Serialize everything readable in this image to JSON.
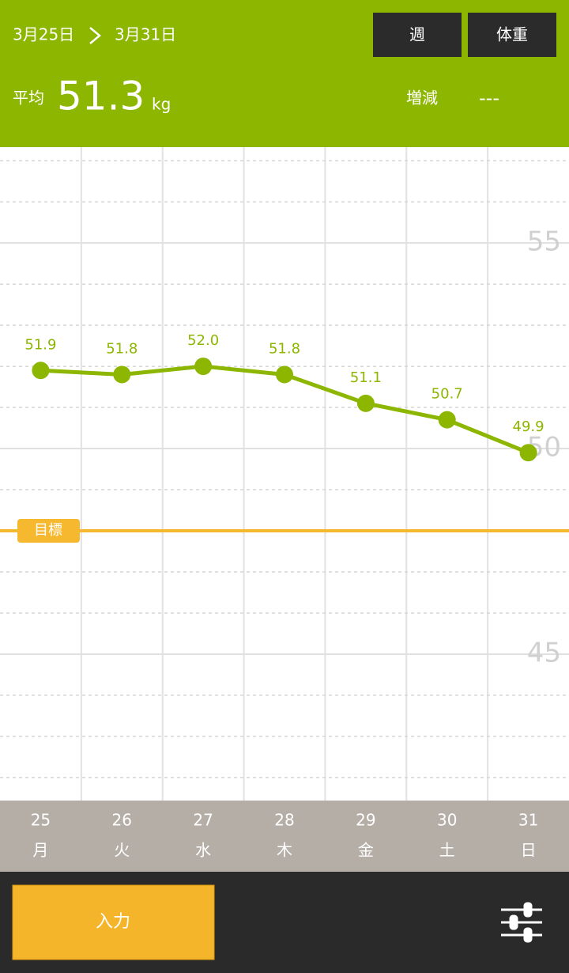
{
  "header": {
    "date_from": "3月25日",
    "date_to": "3月31日",
    "period_button": "週",
    "metric_button": "体重",
    "average_label": "平均",
    "average_value": "51.3",
    "unit": "kg",
    "change_label": "増減",
    "change_value": "---"
  },
  "chart_data": {
    "type": "line",
    "categories": [
      "25",
      "26",
      "27",
      "28",
      "29",
      "30",
      "31"
    ],
    "weekdays": [
      "月",
      "火",
      "水",
      "木",
      "金",
      "土",
      "日"
    ],
    "values": [
      51.9,
      51.8,
      52.0,
      51.8,
      51.1,
      50.7,
      49.9
    ],
    "value_labels": [
      "51.9",
      "51.8",
      "52.0",
      "51.8",
      "51.1",
      "50.7",
      "49.9"
    ],
    "color": "#8db600",
    "ylim": [
      41.44,
      57.33
    ],
    "yticks": [
      45,
      50,
      55
    ],
    "minor_yticks": [
      42,
      43,
      44,
      46,
      47,
      48,
      49,
      51,
      52,
      53,
      54,
      56,
      57
    ],
    "goal": {
      "label": "目標",
      "value": 48.0,
      "color": "#f5b82e"
    },
    "grid": true
  },
  "footer": {
    "input_button": "入力"
  }
}
